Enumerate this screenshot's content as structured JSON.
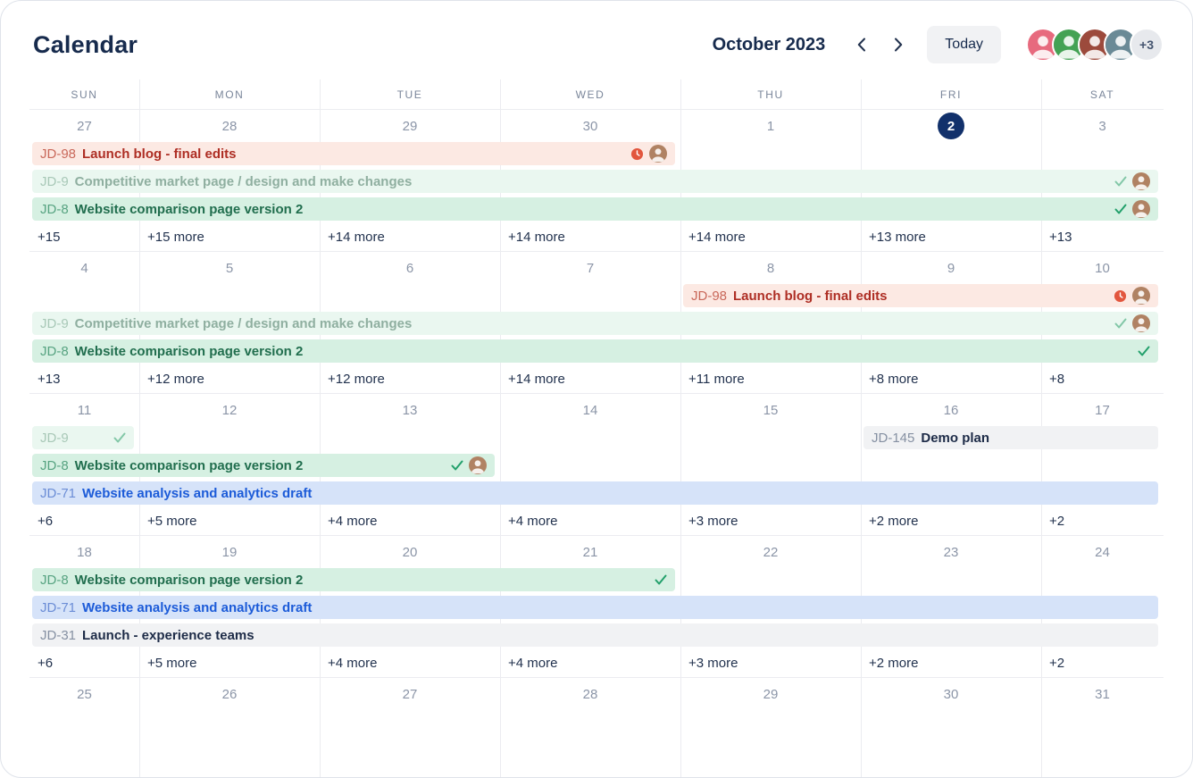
{
  "header": {
    "title": "Calendar",
    "month_label": "October 2023",
    "today_label": "Today",
    "avatar_overflow": "+3",
    "avatars": [
      {
        "name": "user-1",
        "color": "#e76a7e"
      },
      {
        "name": "user-2",
        "color": "#44a254"
      },
      {
        "name": "user-3",
        "color": "#9c4a3c"
      },
      {
        "name": "user-4",
        "color": "#6a8a96"
      }
    ],
    "icons": {
      "prev": "chevron-left-icon",
      "next": "chevron-right-icon"
    }
  },
  "colors": {
    "grid_line": "#ebecf0",
    "text": "#172b4d",
    "date_number": "#8b95a7",
    "day_header": "#7a869a",
    "today_bg": "#12316b",
    "today_text": "#ffffff",
    "check": "#22a06b",
    "overdue": "#e2563e",
    "event_avatar": "#b08263",
    "today_button_bg": "#f1f2f4",
    "overflow_bg": "#e7e9ed"
  },
  "themes": {
    "red": {
      "bg": "#fce9e3",
      "key": "#c9685a",
      "title": "#ae2e24",
      "check": "#22a06b"
    },
    "greenMuted": {
      "bg": "#eaf7f0",
      "key": "#a8c8b7",
      "title": "#8fafa0",
      "check": "#82c7a7"
    },
    "green": {
      "bg": "#d6f0e2",
      "key": "#57a381",
      "title": "#216e4e",
      "check": "#22a06b"
    },
    "blue": {
      "bg": "#d6e3f9",
      "key": "#6b8dd6",
      "title": "#1c5bd8",
      "check": "#22a06b"
    },
    "gray": {
      "bg": "#f1f2f4",
      "key": "#8590a2",
      "title": "#1d2b47",
      "check": "#22a06b"
    }
  },
  "calendar": {
    "day_headers": [
      "SUN",
      "MON",
      "TUE",
      "WED",
      "THU",
      "FRI",
      "SAT"
    ],
    "weeks": [
      {
        "days": [
          "27",
          "28",
          "29",
          "30",
          "1",
          "2",
          "3"
        ],
        "today": 5,
        "lanes": 3,
        "events": [
          {
            "lane": 0,
            "start": 1,
            "span": 4,
            "theme": "red",
            "key": "JD-98",
            "title": "Launch blog - final edits",
            "overdue": true,
            "avatar": true
          },
          {
            "lane": 1,
            "start": 1,
            "span": 7,
            "theme": "greenMuted",
            "key": "JD-9",
            "title": "Competitive market page / design and make changes",
            "done": true,
            "avatar": true
          },
          {
            "lane": 2,
            "start": 1,
            "span": 7,
            "theme": "green",
            "key": "JD-8",
            "title": "Website comparison page version 2",
            "done": true,
            "avatar": true
          }
        ],
        "more": [
          "+15",
          "+15 more",
          "+14 more",
          "+14 more",
          "+14 more",
          "+13 more",
          "+13"
        ]
      },
      {
        "days": [
          "4",
          "5",
          "6",
          "7",
          "8",
          "9",
          "10"
        ],
        "today": null,
        "lanes": 3,
        "events": [
          {
            "lane": 0,
            "start": 5,
            "span": 3,
            "theme": "red",
            "key": "JD-98",
            "title": "Launch blog - final edits",
            "overdue": true,
            "avatar": true
          },
          {
            "lane": 1,
            "start": 1,
            "span": 7,
            "theme": "greenMuted",
            "key": "JD-9",
            "title": "Competitive market page / design and make changes",
            "done": true,
            "avatar": true
          },
          {
            "lane": 2,
            "start": 1,
            "span": 7,
            "theme": "green",
            "key": "JD-8",
            "title": "Website comparison page version 2",
            "done": true
          }
        ],
        "more": [
          "+13",
          "+12 more",
          "+12 more",
          "+14 more",
          "+11 more",
          "+8 more",
          "+8"
        ]
      },
      {
        "days": [
          "11",
          "12",
          "13",
          "14",
          "15",
          "16",
          "17"
        ],
        "today": null,
        "lanes": 3,
        "events": [
          {
            "lane": 0,
            "start": 1,
            "span": 1,
            "theme": "greenMuted",
            "key": "JD-9",
            "title": "",
            "done": true
          },
          {
            "lane": 0,
            "start": 6,
            "span": 2,
            "theme": "gray",
            "key": "JD-145",
            "title": "Demo plan"
          },
          {
            "lane": 1,
            "start": 1,
            "span": 3,
            "theme": "green",
            "key": "JD-8",
            "title": "Website comparison page version 2",
            "done": true,
            "avatar": true
          },
          {
            "lane": 2,
            "start": 1,
            "span": 7,
            "theme": "blue",
            "key": "JD-71",
            "title": "Website analysis and analytics draft"
          }
        ],
        "more": [
          "+6",
          "+5 more",
          "+4 more",
          "+4 more",
          "+3 more",
          "+2 more",
          "+2"
        ]
      },
      {
        "days": [
          "18",
          "19",
          "20",
          "21",
          "22",
          "23",
          "24"
        ],
        "today": null,
        "lanes": 3,
        "events": [
          {
            "lane": 0,
            "start": 1,
            "span": 4,
            "theme": "green",
            "key": "JD-8",
            "title": "Website comparison page version 2",
            "done": true
          },
          {
            "lane": 1,
            "start": 1,
            "span": 7,
            "theme": "blue",
            "key": "JD-71",
            "title": "Website analysis and analytics draft"
          },
          {
            "lane": 2,
            "start": 1,
            "span": 7,
            "theme": "gray",
            "key": "JD-31",
            "title": "Launch - experience teams"
          }
        ],
        "more": [
          "+6",
          "+5 more",
          "+4 more",
          "+4 more",
          "+3 more",
          "+2 more",
          "+2"
        ]
      },
      {
        "days": [
          "25",
          "26",
          "27",
          "28",
          "29",
          "30",
          "31"
        ],
        "today": null,
        "lanes": 0,
        "events": [],
        "more": null
      }
    ]
  }
}
